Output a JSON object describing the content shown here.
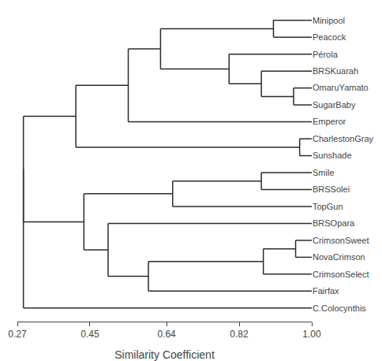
{
  "chart_data": {
    "type": "dendrogram",
    "categories": [
      "Minipool",
      "Peacock",
      "Pérola",
      "BRSKuarah",
      "OmaruYamato",
      "SugarBaby",
      "Emperor",
      "CharlestonGray",
      "Sunshade",
      "Smile",
      "BRSSolei",
      "TopGun",
      "BRSOpara",
      "CrimsonSweet",
      "NovaCrimson",
      "CrimsonSelect",
      "Fairfax",
      "C.Colocynthis"
    ],
    "merges": [
      {
        "members": [
          "Minipool",
          "Peacock"
        ],
        "value": 0.905
      },
      {
        "members": [
          "OmaruYamato",
          "SugarBaby"
        ],
        "value": 0.955
      },
      {
        "members": [
          "BRSKuarah",
          1
        ],
        "value": 0.875
      },
      {
        "members": [
          "Pérola",
          2
        ],
        "value": 0.795
      },
      {
        "members": [
          0,
          3
        ],
        "value": 0.625
      },
      {
        "members": [
          4,
          "Emperor"
        ],
        "value": 0.545
      },
      {
        "members": [
          "CharlestonGray",
          "Sunshade"
        ],
        "value": 0.97
      },
      {
        "members": [
          5,
          6
        ],
        "value": 0.415
      },
      {
        "members": [
          "Smile",
          "BRSSolei"
        ],
        "value": 0.875
      },
      {
        "members": [
          8,
          "TopGun"
        ],
        "value": 0.655
      },
      {
        "members": [
          "CrimsonSweet",
          "NovaCrimson"
        ],
        "value": 0.96
      },
      {
        "members": [
          10,
          "CrimsonSelect"
        ],
        "value": 0.88
      },
      {
        "members": [
          11,
          "Fairfax"
        ],
        "value": 0.595
      },
      {
        "members": [
          "BRSOpara",
          12
        ],
        "value": 0.495
      },
      {
        "members": [
          9,
          13
        ],
        "value": 0.435
      },
      {
        "members": [
          7,
          14
        ],
        "value": 0.285
      },
      {
        "members": [
          15,
          "C.Colocynthis"
        ],
        "value": 0.285
      }
    ],
    "xlabel": "Similarity Coefficient",
    "xlim": [
      0.27,
      1.0
    ],
    "xticks": [
      0.27,
      0.45,
      0.64,
      0.82,
      {
        "value": 1.0,
        "label": "1.00"
      }
    ],
    "color": "#2b2b2b",
    "grid": false
  }
}
